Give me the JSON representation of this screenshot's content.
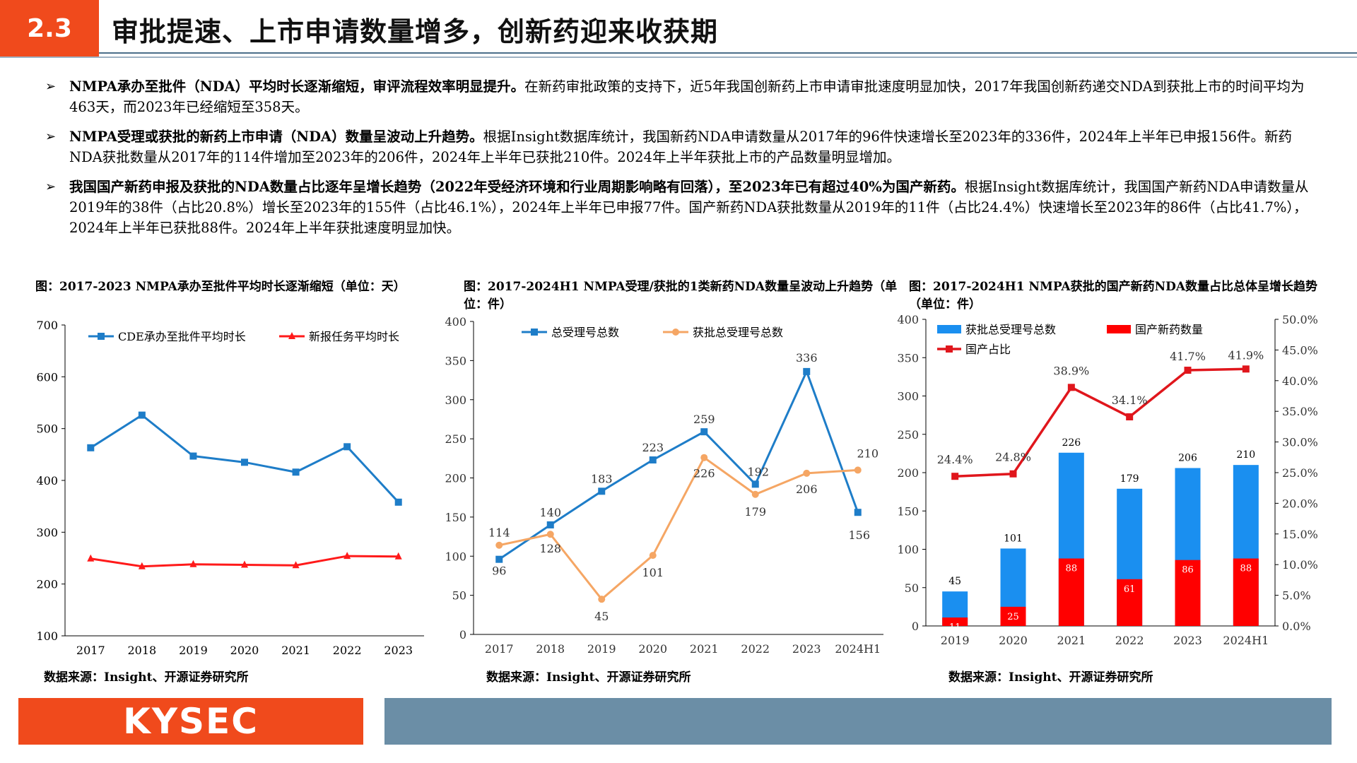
{
  "header": {
    "section": "2.3",
    "title": "审批提速、上市申请数量增多，创新药迎来收获期"
  },
  "bullets": [
    {
      "bold": "NMPA承办至批件（NDA）平均时长逐渐缩短，审评流程效率明显提升。",
      "text": "在新药审批政策的支持下，近5年我国创新药上市申请审批速度明显加快，2017年我国创新药递交NDA到获批上市的时间平均为463天，而2023年已经缩短至358天。"
    },
    {
      "bold": "NMPA受理或获批的新药上市申请（NDA）数量呈波动上升趋势。",
      "text": "根据Insight数据库统计，我国新药NDA申请数量从2017年的96件快速增长至2023年的336件，2024年上半年已申报156件。新药NDA获批数量从2017年的114件增加至2023年的206件，2024年上半年已获批210件。2024年上半年获批上市的产品数量明显增加。"
    },
    {
      "bold": "我国国产新药申报及获批的NDA数量占比逐年呈增长趋势（2022年受经济环境和行业周期影响略有回落），至2023年已有超过40%为国产新药。",
      "text": "根据Insight数据库统计，我国国产新药NDA申请数量从2019年的38件（占比20.8%）增长至2023年的155件（占比46.1%），2024年上半年已申报77件。国产新药NDA获批数量从2019年的11件（占比24.4%）快速增长至2023年的86件（占比41.7%），2024年上半年已获批88件。2024年上半年获批速度明显加快。"
    }
  ],
  "charts": [
    {
      "title": "图：2017-2023 NMPA承办至批件平均时长逐渐缩短（单位：天）",
      "source": "数据来源：Insight、开源证券研究所"
    },
    {
      "title": "图：2017-2024H1 NMPA受理/获批的1类新药NDA数量呈波动上升趋势（单位：件）",
      "source": "数据来源：Insight、开源证券研究所"
    },
    {
      "title": "图：2017-2024H1 NMPA获批的国产新药NDA数量占比总体呈增长趋势（单位：件）",
      "source": "数据来源：Insight、开源证券研究所"
    }
  ],
  "chart_data": [
    {
      "type": "line",
      "categories": [
        "2017",
        "2018",
        "2019",
        "2020",
        "2021",
        "2022",
        "2023"
      ],
      "ylim": [
        100,
        700
      ],
      "yticks": [
        100,
        200,
        300,
        400,
        500,
        600,
        700
      ],
      "legend_position": "top",
      "series": [
        {
          "name": "CDE承办至批件平均时长",
          "values": [
            463,
            526,
            447,
            435,
            416,
            465,
            358
          ],
          "color": "#1e7dc8",
          "marker": "square"
        },
        {
          "name": "新报任务平均时长",
          "values": [
            249,
            234,
            238,
            237,
            236,
            254,
            253
          ],
          "color": "#ff1a1a",
          "marker": "triangle"
        }
      ]
    },
    {
      "type": "line",
      "categories": [
        "2017",
        "2018",
        "2019",
        "2020",
        "2021",
        "2022",
        "2023",
        "2024H1"
      ],
      "ylim": [
        0,
        400
      ],
      "yticks": [
        0,
        50,
        100,
        150,
        200,
        250,
        300,
        350,
        400
      ],
      "legend_position": "top",
      "series": [
        {
          "name": "总受理号总数",
          "values": [
            96,
            140,
            183,
            223,
            259,
            192,
            336,
            156
          ],
          "color": "#1e7dc8",
          "marker": "square",
          "labels": [
            "96",
            "140",
            "183",
            "223",
            "259",
            "192",
            "336",
            "156"
          ]
        },
        {
          "name": "获批总受理号总数",
          "values": [
            114,
            128,
            45,
            101,
            226,
            179,
            206,
            210
          ],
          "color": "#f5a664",
          "marker": "circle",
          "labels": [
            "114",
            "128",
            "45",
            "101",
            "226",
            "179",
            "206",
            "210"
          ]
        }
      ]
    },
    {
      "type": "bar",
      "categories": [
        "2019",
        "2020",
        "2021",
        "2022",
        "2023",
        "2024H1"
      ],
      "ylim": [
        0,
        400
      ],
      "yticks": [
        0,
        50,
        100,
        150,
        200,
        250,
        300,
        350,
        400
      ],
      "y2lim": [
        0,
        50
      ],
      "y2ticks": [
        "0.0%",
        "5.0%",
        "10.0%",
        "15.0%",
        "20.0%",
        "25.0%",
        "30.0%",
        "35.0%",
        "40.0%",
        "45.0%",
        "50.0%"
      ],
      "legend_position": "top-left",
      "series": [
        {
          "name": "获批总受理号总数",
          "values": [
            45,
            101,
            226,
            179,
            206,
            210
          ],
          "color": "#1a8ff0",
          "kind": "bar",
          "labels": [
            "45",
            "101",
            "226",
            "179",
            "206",
            "210"
          ]
        },
        {
          "name": "国产新药数量",
          "values": [
            11,
            25,
            88,
            61,
            86,
            88
          ],
          "color": "#ff0000",
          "kind": "bar",
          "labels": [
            "11",
            "25",
            "88",
            "61",
            "86",
            "88"
          ]
        },
        {
          "name": "国产占比",
          "values": [
            24.4,
            24.8,
            38.9,
            34.1,
            41.7,
            41.9
          ],
          "color": "#e0161c",
          "kind": "line",
          "axis": "right",
          "labels": [
            "24.4%",
            "24.8%",
            "38.9%",
            "34.1%",
            "41.7%",
            "41.9%"
          ]
        }
      ]
    }
  ],
  "footer": {
    "logo": "KYSEC"
  }
}
